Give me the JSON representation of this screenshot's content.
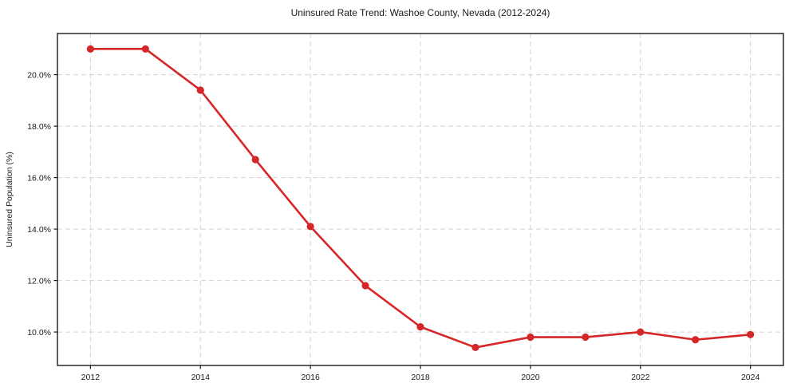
{
  "chart_data": {
    "type": "line",
    "title": "Uninsured Rate Trend: Washoe County, Nevada (2012-2024)",
    "xlabel": "",
    "ylabel": "Uninsured Population (%)",
    "x": [
      2012,
      2013,
      2014,
      2015,
      2016,
      2017,
      2018,
      2019,
      2020,
      2021,
      2022,
      2023,
      2024
    ],
    "series": [
      {
        "name": "Uninsured Rate",
        "values": [
          21.0,
          21.0,
          19.4,
          16.7,
          14.1,
          11.8,
          10.2,
          9.4,
          9.8,
          9.8,
          10.0,
          9.7,
          9.9
        ]
      }
    ],
    "xlim": [
      2011.4,
      2024.6
    ],
    "ylim": [
      8.7,
      21.6
    ],
    "x_ticks": [
      2012,
      2014,
      2016,
      2018,
      2020,
      2022,
      2024
    ],
    "x_tick_labels": [
      "2012",
      "2014",
      "2016",
      "2018",
      "2020",
      "2022",
      "2024"
    ],
    "y_ticks": [
      10,
      12,
      14,
      16,
      18,
      20
    ],
    "y_tick_labels": [
      "10.0%",
      "12.0%",
      "14.0%",
      "16.0%",
      "18.0%",
      "20.0%"
    ],
    "grid": true,
    "legend": "none",
    "colors": {
      "line": "#d62728",
      "marker": "#d62728",
      "grid": "#d4d4d4",
      "spine": "#1a1a1a",
      "text": "#1a1a1a",
      "background": "#ffffff"
    }
  }
}
